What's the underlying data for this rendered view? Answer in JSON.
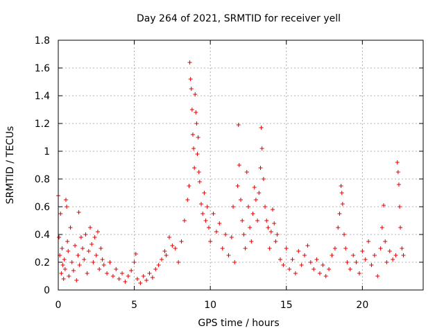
{
  "chart_data": {
    "type": "scatter",
    "title": "Day 264 of 2021, SRMTID for receiver yell",
    "xlabel": "GPS time / hours",
    "ylabel": "SRMTID / TECUs",
    "xlim": [
      0,
      24
    ],
    "ylim": [
      0,
      1.8
    ],
    "xticks": [
      0,
      5,
      10,
      15,
      20
    ],
    "xtick_labels": [
      "0",
      "5",
      "10",
      "15",
      "20"
    ],
    "yticks": [
      0,
      0.2,
      0.4,
      0.6,
      0.8,
      1,
      1.2,
      1.4,
      1.6,
      1.8
    ],
    "ytick_labels": [
      "0",
      "0.2",
      "0.4",
      "0.6",
      "0.8",
      "1",
      "1.2",
      "1.4",
      "1.6",
      "1.8"
    ],
    "grid": true,
    "marker": "+",
    "marker_color": "#e00000",
    "series": [
      {
        "name": "SRMTID",
        "points": [
          [
            0.0,
            0.68
          ],
          [
            0.05,
            0.38
          ],
          [
            0.1,
            0.25
          ],
          [
            0.15,
            0.55
          ],
          [
            0.2,
            0.12
          ],
          [
            0.25,
            0.3
          ],
          [
            0.3,
            0.18
          ],
          [
            0.35,
            0.08
          ],
          [
            0.4,
            0.22
          ],
          [
            0.45,
            0.15
          ],
          [
            0.5,
            0.65
          ],
          [
            0.55,
            0.6
          ],
          [
            0.6,
            0.35
          ],
          [
            0.65,
            0.28
          ],
          [
            0.7,
            0.1
          ],
          [
            0.8,
            0.45
          ],
          [
            0.9,
            0.2
          ],
          [
            1.0,
            0.14
          ],
          [
            1.1,
            0.32
          ],
          [
            1.2,
            0.07
          ],
          [
            1.3,
            0.25
          ],
          [
            1.35,
            0.56
          ],
          [
            1.4,
            0.18
          ],
          [
            1.5,
            0.38
          ],
          [
            1.6,
            0.3
          ],
          [
            1.7,
            0.22
          ],
          [
            1.8,
            0.4
          ],
          [
            1.9,
            0.12
          ],
          [
            2.0,
            0.28
          ],
          [
            2.1,
            0.45
          ],
          [
            2.2,
            0.33
          ],
          [
            2.3,
            0.2
          ],
          [
            2.4,
            0.38
          ],
          [
            2.5,
            0.25
          ],
          [
            2.6,
            0.42
          ],
          [
            2.7,
            0.15
          ],
          [
            2.8,
            0.3
          ],
          [
            2.9,
            0.22
          ],
          [
            3.0,
            0.18
          ],
          [
            3.2,
            0.12
          ],
          [
            3.4,
            0.2
          ],
          [
            3.6,
            0.1
          ],
          [
            3.8,
            0.15
          ],
          [
            4.0,
            0.08
          ],
          [
            4.2,
            0.12
          ],
          [
            4.4,
            0.06
          ],
          [
            4.6,
            0.1
          ],
          [
            4.8,
            0.14
          ],
          [
            5.0,
            0.2
          ],
          [
            5.1,
            0.26
          ],
          [
            5.2,
            0.08
          ],
          [
            5.4,
            0.05
          ],
          [
            5.6,
            0.1
          ],
          [
            5.8,
            0.07
          ],
          [
            6.0,
            0.12
          ],
          [
            6.2,
            0.09
          ],
          [
            6.4,
            0.15
          ],
          [
            6.6,
            0.18
          ],
          [
            6.8,
            0.22
          ],
          [
            7.0,
            0.28
          ],
          [
            7.1,
            0.25
          ],
          [
            7.3,
            0.38
          ],
          [
            7.5,
            0.32
          ],
          [
            7.7,
            0.3
          ],
          [
            7.9,
            0.2
          ],
          [
            8.1,
            0.35
          ],
          [
            8.3,
            0.5
          ],
          [
            8.5,
            0.65
          ],
          [
            8.6,
            0.75
          ],
          [
            8.65,
            1.64
          ],
          [
            8.7,
            1.52
          ],
          [
            8.75,
            1.45
          ],
          [
            8.8,
            1.3
          ],
          [
            8.85,
            1.12
          ],
          [
            8.9,
            1.02
          ],
          [
            8.95,
            0.88
          ],
          [
            9.0,
            1.41
          ],
          [
            9.05,
            1.28
          ],
          [
            9.1,
            1.2
          ],
          [
            9.15,
            0.98
          ],
          [
            9.2,
            1.1
          ],
          [
            9.25,
            0.85
          ],
          [
            9.3,
            0.78
          ],
          [
            9.4,
            0.62
          ],
          [
            9.5,
            0.55
          ],
          [
            9.6,
            0.7
          ],
          [
            9.7,
            0.5
          ],
          [
            9.8,
            0.6
          ],
          [
            9.9,
            0.45
          ],
          [
            10.0,
            0.35
          ],
          [
            10.2,
            0.55
          ],
          [
            10.4,
            0.42
          ],
          [
            10.6,
            0.48
          ],
          [
            10.8,
            0.3
          ],
          [
            11.0,
            0.4
          ],
          [
            11.2,
            0.25
          ],
          [
            11.4,
            0.38
          ],
          [
            11.5,
            0.6
          ],
          [
            11.6,
            0.2
          ],
          [
            11.8,
            0.75
          ],
          [
            11.85,
            1.19
          ],
          [
            11.9,
            0.9
          ],
          [
            12.0,
            0.65
          ],
          [
            12.1,
            0.5
          ],
          [
            12.2,
            0.4
          ],
          [
            12.3,
            0.3
          ],
          [
            12.4,
            0.85
          ],
          [
            12.5,
            0.6
          ],
          [
            12.6,
            0.45
          ],
          [
            12.7,
            0.35
          ],
          [
            12.8,
            0.55
          ],
          [
            12.9,
            0.74
          ],
          [
            13.0,
            0.65
          ],
          [
            13.1,
            0.5
          ],
          [
            13.2,
            0.7
          ],
          [
            13.3,
            0.88
          ],
          [
            13.35,
            1.17
          ],
          [
            13.4,
            1.02
          ],
          [
            13.5,
            0.8
          ],
          [
            13.6,
            0.6
          ],
          [
            13.7,
            0.5
          ],
          [
            13.8,
            0.45
          ],
          [
            13.9,
            0.3
          ],
          [
            14.0,
            0.42
          ],
          [
            14.1,
            0.58
          ],
          [
            14.2,
            0.48
          ],
          [
            14.3,
            0.35
          ],
          [
            14.4,
            0.4
          ],
          [
            14.6,
            0.22
          ],
          [
            14.8,
            0.18
          ],
          [
            15.0,
            0.3
          ],
          [
            15.2,
            0.15
          ],
          [
            15.4,
            0.22
          ],
          [
            15.6,
            0.12
          ],
          [
            15.8,
            0.28
          ],
          [
            16.0,
            0.18
          ],
          [
            16.2,
            0.25
          ],
          [
            16.4,
            0.32
          ],
          [
            16.6,
            0.2
          ],
          [
            16.8,
            0.15
          ],
          [
            17.0,
            0.22
          ],
          [
            17.2,
            0.12
          ],
          [
            17.4,
            0.18
          ],
          [
            17.6,
            0.1
          ],
          [
            17.8,
            0.15
          ],
          [
            18.0,
            0.25
          ],
          [
            18.2,
            0.3
          ],
          [
            18.4,
            0.45
          ],
          [
            18.5,
            0.55
          ],
          [
            18.6,
            0.75
          ],
          [
            18.65,
            0.7
          ],
          [
            18.7,
            0.62
          ],
          [
            18.8,
            0.4
          ],
          [
            18.9,
            0.3
          ],
          [
            19.0,
            0.2
          ],
          [
            19.2,
            0.15
          ],
          [
            19.4,
            0.25
          ],
          [
            19.6,
            0.2
          ],
          [
            19.8,
            0.12
          ],
          [
            20.0,
            0.28
          ],
          [
            20.2,
            0.22
          ],
          [
            20.4,
            0.35
          ],
          [
            20.6,
            0.18
          ],
          [
            20.8,
            0.25
          ],
          [
            21.0,
            0.1
          ],
          [
            21.2,
            0.3
          ],
          [
            21.3,
            0.45
          ],
          [
            21.4,
            0.61
          ],
          [
            21.5,
            0.35
          ],
          [
            21.6,
            0.2
          ],
          [
            21.8,
            0.28
          ],
          [
            22.0,
            0.22
          ],
          [
            22.2,
            0.25
          ],
          [
            22.3,
            0.92
          ],
          [
            22.35,
            0.85
          ],
          [
            22.4,
            0.76
          ],
          [
            22.45,
            0.6
          ],
          [
            22.5,
            0.45
          ],
          [
            22.6,
            0.3
          ],
          [
            22.7,
            0.25
          ]
        ]
      }
    ]
  }
}
